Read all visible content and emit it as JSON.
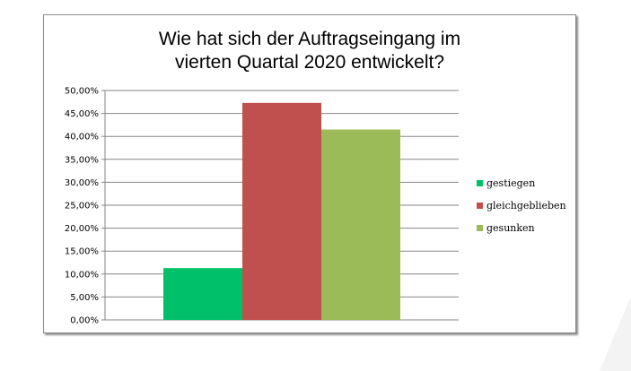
{
  "chart_data": {
    "type": "bar",
    "title_lines": [
      "Wie hat sich der Auftragseingang im",
      "vierten Quartal 2020 entwickelt?"
    ],
    "categories": [
      "gestiegen",
      "gleichgeblieben",
      "gesunken"
    ],
    "values": [
      11.3,
      47.3,
      41.5
    ],
    "colors": [
      "#00c16a",
      "#c0504d",
      "#9bbb59"
    ],
    "ylim": [
      0,
      50
    ],
    "ytick_step": 5,
    "ytick_labels": [
      "0,00%",
      "5,00%",
      "10,00%",
      "15,00%",
      "20,00%",
      "25,00%",
      "30,00%",
      "35,00%",
      "40,00%",
      "45,00%",
      "50,00%"
    ],
    "grid": true,
    "legend": {
      "position": "right",
      "items": [
        {
          "label": "gestiegen",
          "color": "#00c16a"
        },
        {
          "label": "gleichgeblieben",
          "color": "#c0504d"
        },
        {
          "label": "gesunken",
          "color": "#9bbb59"
        }
      ]
    }
  }
}
